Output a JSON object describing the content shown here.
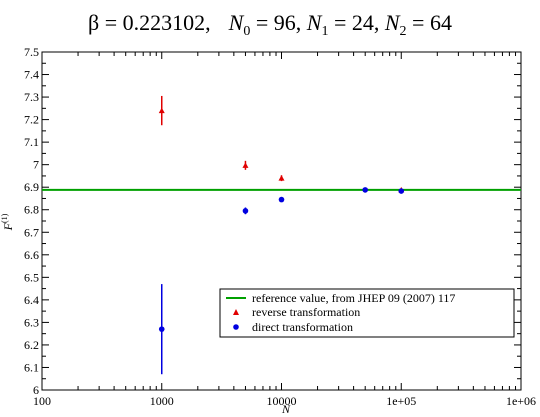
{
  "chart_data": {
    "type": "scatter",
    "title": "β = 0.223102,   N0 = 96, N1 = 24, N2 = 64",
    "title_parts": {
      "beta": "β = 0.223102,",
      "n0_var": "N",
      "n0_sub": "0",
      "n0_val": " = 96, ",
      "n1_var": "N",
      "n1_sub": "1",
      "n1_val": " = 24, ",
      "n2_var": "N",
      "n2_sub": "2",
      "n2_val": " = 64"
    },
    "xlabel": "N",
    "ylabel_main": "F",
    "ylabel_sup": "(1)",
    "x_scale": "log",
    "xlim": [
      100,
      1000000
    ],
    "ylim": [
      6.0,
      7.5
    ],
    "x_ticks": [
      100,
      1000,
      10000,
      100000,
      1000000
    ],
    "x_tick_labels": [
      "100",
      "1000",
      "10000",
      "1e+05",
      "1e+06"
    ],
    "y_ticks": [
      6,
      6.1,
      6.2,
      6.3,
      6.4,
      6.5,
      6.6,
      6.7,
      6.8,
      6.9,
      7,
      7.1,
      7.2,
      7.3,
      7.4,
      7.5
    ],
    "y_tick_labels": [
      "6",
      "6.1",
      "6.2",
      "6.3",
      "6.4",
      "6.5",
      "6.6",
      "6.7",
      "6.8",
      "6.9",
      "7",
      "7.1",
      "7.2",
      "7.3",
      "7.4",
      "7.5"
    ],
    "grid": false,
    "legend_position": "bottom-right",
    "reference_line": {
      "name": "reference value, from JHEP 09 (2007) 117",
      "y": 6.888,
      "color": "#00a000"
    },
    "series": [
      {
        "name": "reverse transformation",
        "marker": "triangle",
        "color": "#e00000",
        "points": [
          {
            "x": 1000,
            "y": 7.24,
            "err": 0.065
          },
          {
            "x": 5000,
            "y": 6.997,
            "err": 0.02
          },
          {
            "x": 10000,
            "y": 6.94,
            "err": 0.013
          },
          {
            "x": 100000,
            "y": 6.888,
            "err": 0.006
          }
        ]
      },
      {
        "name": "direct transformation",
        "marker": "circle",
        "color": "#0000e0",
        "points": [
          {
            "x": 1000,
            "y": 6.27,
            "err": 0.2
          },
          {
            "x": 5000,
            "y": 6.795,
            "err": 0.015
          },
          {
            "x": 10000,
            "y": 6.845,
            "err": 0.008
          },
          {
            "x": 50000,
            "y": 6.888,
            "err": 0.004
          },
          {
            "x": 100000,
            "y": 6.883,
            "err": 0.004
          }
        ]
      }
    ]
  }
}
